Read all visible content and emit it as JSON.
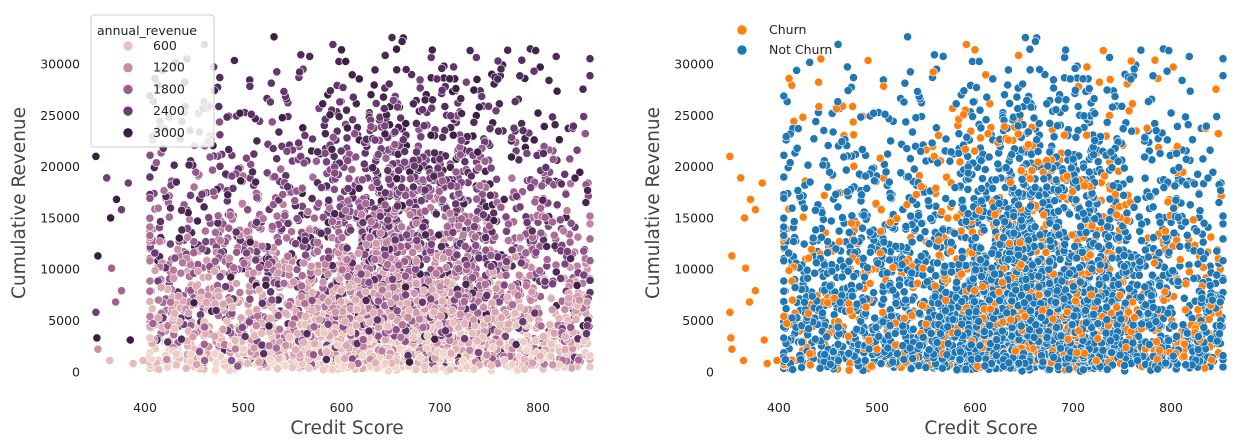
{
  "chart_data": [
    {
      "type": "scatter",
      "title": "",
      "xlabel": "Credit Score",
      "ylabel": "Cumulative Revenue",
      "xlim": [
        345,
        855
      ],
      "ylim": [
        -900,
        34100
      ],
      "x_ticks": [
        400,
        500,
        600,
        700,
        800
      ],
      "y_ticks": [
        0,
        5000,
        10000,
        15000,
        20000,
        25000,
        30000
      ],
      "grid": false,
      "hue": "annual_revenue",
      "legend": {
        "placement": "top-left",
        "title": "annual_revenue",
        "entries": [
          {
            "label": "600",
            "value": 600,
            "color": "#e8c2bd"
          },
          {
            "label": "1200",
            "value": 1200,
            "color": "#c88ea4"
          },
          {
            "label": "1800",
            "value": 1800,
            "color": "#9b5f8e"
          },
          {
            "label": "2400",
            "value": 2400,
            "color": "#683f72"
          },
          {
            "label": "3000",
            "value": 3000,
            "color": "#3a1f44"
          }
        ]
      },
      "colormap": [
        "#f1d8cd",
        "#e5b9b6",
        "#cf97a8",
        "#ae6f98",
        "#874e86",
        "#5e3468",
        "#311a39"
      ],
      "point_count_approx": 4500,
      "points": [
        {
          "x": 350,
          "y": 21000,
          "hue": 3000
        },
        {
          "x": 352,
          "y": 11300,
          "hue": 3000
        },
        {
          "x": 351,
          "y": 3300,
          "hue": 3000
        },
        {
          "x": 350,
          "y": 5800,
          "hue": 2400
        },
        {
          "x": 352,
          "y": 2200,
          "hue": 1200
        },
        {
          "x": 361,
          "y": 18900,
          "hue": 2400
        },
        {
          "x": 366,
          "y": 10100,
          "hue": 1800
        },
        {
          "x": 365,
          "y": 15000,
          "hue": 3000
        },
        {
          "x": 371,
          "y": 16800,
          "hue": 3000
        },
        {
          "x": 376,
          "y": 15800,
          "hue": 2400
        },
        {
          "x": 376,
          "y": 7900,
          "hue": 1800
        },
        {
          "x": 383,
          "y": 18400,
          "hue": 2400
        },
        {
          "x": 385,
          "y": 3100,
          "hue": 3000
        },
        {
          "x": 388,
          "y": 800,
          "hue": 600
        },
        {
          "x": 398,
          "y": 1100,
          "hue": 600
        },
        {
          "x": 408,
          "y": 4700,
          "hue": 1800
        },
        {
          "x": 370,
          "y": 6800,
          "hue": 1800
        },
        {
          "x": 364,
          "y": 1100,
          "hue": 600
        }
      ]
    },
    {
      "type": "scatter",
      "title": "",
      "xlabel": "Credit Score",
      "ylabel": "Cumulative Revenue",
      "xlim": [
        345,
        855
      ],
      "ylim": [
        -900,
        34100
      ],
      "x_ticks": [
        400,
        500,
        600,
        700,
        800
      ],
      "y_ticks": [
        0,
        5000,
        10000,
        15000,
        20000,
        25000,
        30000
      ],
      "grid": false,
      "legend": {
        "placement": "top-left",
        "entries": [
          {
            "label": "Churn",
            "color": "#ff7f0e"
          },
          {
            "label": "Not Churn",
            "color": "#1f77b4"
          }
        ]
      },
      "series": [
        {
          "name": "Churn",
          "color": "#ff7f0e",
          "fraction_approx": 0.2
        },
        {
          "name": "Not Churn",
          "color": "#1f77b4",
          "fraction_approx": 0.8
        }
      ],
      "point_count_approx": 4500,
      "points": [
        {
          "x": 350,
          "y": 21000,
          "series": "Churn"
        },
        {
          "x": 352,
          "y": 11300,
          "series": "Churn"
        },
        {
          "x": 351,
          "y": 3300,
          "series": "Churn"
        },
        {
          "x": 350,
          "y": 5800,
          "series": "Churn"
        },
        {
          "x": 352,
          "y": 2200,
          "series": "Churn"
        },
        {
          "x": 361,
          "y": 18900,
          "series": "Churn"
        },
        {
          "x": 366,
          "y": 10100,
          "series": "Churn"
        },
        {
          "x": 365,
          "y": 15000,
          "series": "Churn"
        },
        {
          "x": 371,
          "y": 16800,
          "series": "Churn"
        },
        {
          "x": 376,
          "y": 15800,
          "series": "Churn"
        },
        {
          "x": 376,
          "y": 7900,
          "series": "Churn"
        },
        {
          "x": 383,
          "y": 18400,
          "series": "Churn"
        },
        {
          "x": 385,
          "y": 3100,
          "series": "Churn"
        },
        {
          "x": 388,
          "y": 800,
          "series": "Churn"
        },
        {
          "x": 398,
          "y": 1100,
          "series": "Churn"
        },
        {
          "x": 408,
          "y": 4700,
          "series": "Churn"
        },
        {
          "x": 370,
          "y": 6800,
          "series": "Churn"
        },
        {
          "x": 364,
          "y": 1100,
          "series": "Churn"
        }
      ]
    }
  ]
}
